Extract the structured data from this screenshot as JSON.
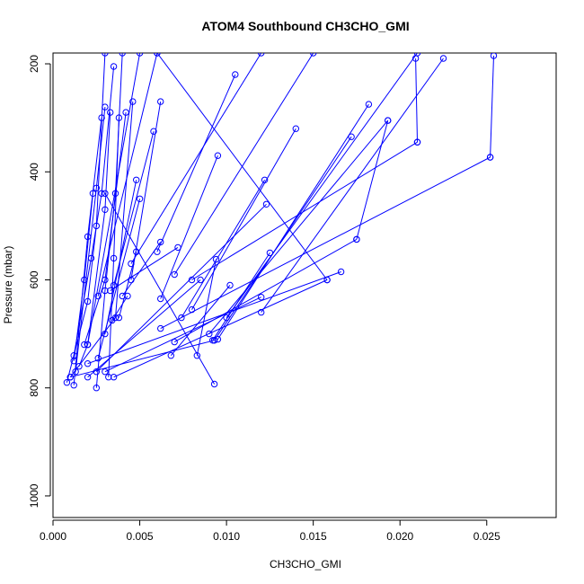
{
  "chart_data": {
    "type": "line",
    "title": "ATOM4 Southbound CH3CHO_GMI",
    "xlabel": "CH3CHO_GMI",
    "ylabel": "Pressure (mbar)",
    "xlim": [
      0.0,
      0.029
    ],
    "ylim": [
      1040,
      180
    ],
    "y_reversed": true,
    "xticks": [
      0.0,
      0.005,
      0.01,
      0.015,
      0.02,
      0.025
    ],
    "xtick_labels": [
      "0.000",
      "0.005",
      "0.010",
      "0.015",
      "0.020",
      "0.025"
    ],
    "yticks": [
      200,
      400,
      600,
      800,
      1000
    ],
    "ytick_labels": [
      "200",
      "400",
      "600",
      "800",
      "1000"
    ],
    "grid": false,
    "line_color": "#0000ff",
    "marker": "open-circle",
    "series": [
      {
        "x": [
          0.0025,
          0.003,
          0.0036,
          0.004
        ],
        "y": [
          800,
          620,
          440,
          180
        ]
      },
      {
        "x": [
          0.0012,
          0.0022,
          0.0028,
          0.0035
        ],
        "y": [
          740,
          560,
          440,
          205
        ]
      },
      {
        "x": [
          0.0008,
          0.002,
          0.0025,
          0.003
        ],
        "y": [
          790,
          640,
          500,
          180
        ]
      },
      {
        "x": [
          0.0012,
          0.0018,
          0.0023
        ],
        "y": [
          750,
          600,
          440
        ]
      },
      {
        "x": [
          0.0015,
          0.002,
          0.003,
          0.0033
        ],
        "y": [
          760,
          720,
          470,
          290
        ]
      },
      {
        "x": [
          0.0012,
          0.002,
          0.0028
        ],
        "y": [
          795,
          520,
          300
        ]
      },
      {
        "x": [
          0.0013,
          0.0025,
          0.003
        ],
        "y": [
          770,
          430,
          280
        ]
      },
      {
        "x": [
          0.0032,
          0.0035,
          0.0038
        ],
        "y": [
          780,
          560,
          300
        ]
      },
      {
        "x": [
          0.0018,
          0.003,
          0.0042
        ],
        "y": [
          720,
          600,
          290
        ]
      },
      {
        "x": [
          0.001,
          0.0036,
          0.0046
        ],
        "y": [
          780,
          670,
          270
        ]
      },
      {
        "x": [
          0.0026,
          0.005
        ],
        "y": [
          745,
          450
        ]
      },
      {
        "x": [
          0.003,
          0.0048
        ],
        "y": [
          700,
          415
        ]
      },
      {
        "x": [
          0.0034,
          0.0043
        ],
        "y": [
          675,
          630
        ]
      },
      {
        "x": [
          0.004,
          0.0062
        ],
        "y": [
          630,
          530
        ]
      },
      {
        "x": [
          0.0035,
          0.0058
        ],
        "y": [
          610,
          325
        ]
      },
      {
        "x": [
          0.0045,
          0.0062
        ],
        "y": [
          600,
          270
        ]
      },
      {
        "x": [
          0.0038,
          0.0048
        ],
        "y": [
          670,
          548
        ]
      },
      {
        "x": [
          0.001,
          0.0093
        ],
        "y": [
          780,
          712
        ]
      },
      {
        "x": [
          0.003,
          0.012
        ],
        "y": [
          770,
          632
        ]
      },
      {
        "x": [
          0.0035,
          0.0158
        ],
        "y": [
          780,
          600
        ]
      },
      {
        "x": [
          0.002,
          0.0166
        ],
        "y": [
          755,
          585
        ]
      },
      {
        "x": [
          0.007,
          0.0175
        ],
        "y": [
          715,
          525
        ]
      },
      {
        "x": [
          0.0068,
          0.0102
        ],
        "y": [
          740,
          610
        ]
      },
      {
        "x": [
          0.0083,
          0.0094
        ],
        "y": [
          740,
          562
        ]
      },
      {
        "x": [
          0.0092,
          0.0125
        ],
        "y": [
          712,
          550
        ]
      },
      {
        "x": [
          0.0074,
          0.0122
        ],
        "y": [
          670,
          415
        ]
      },
      {
        "x": [
          0.0093,
          0.0172
        ],
        "y": [
          712,
          335
        ]
      },
      {
        "x": [
          0.0095,
          0.0182
        ],
        "y": [
          710,
          275
        ]
      },
      {
        "x": [
          0.009,
          0.0193
        ],
        "y": [
          700,
          305
        ]
      },
      {
        "x": [
          0.008,
          0.014
        ],
        "y": [
          655,
          320
        ]
      },
      {
        "x": [
          0.0062,
          0.0095
        ],
        "y": [
          635,
          370
        ]
      },
      {
        "x": [
          0.007,
          0.015
        ],
        "y": [
          590,
          180
        ]
      },
      {
        "x": [
          0.0045,
          0.012
        ],
        "y": [
          570,
          180
        ]
      },
      {
        "x": [
          0.006,
          0.0105
        ],
        "y": [
          548,
          220
        ]
      },
      {
        "x": [
          0.008,
          0.021
        ],
        "y": [
          600,
          345
        ]
      },
      {
        "x": [
          0.01,
          0.021
        ],
        "y": [
          670,
          180
        ]
      },
      {
        "x": [
          0.012,
          0.0225
        ],
        "y": [
          660,
          190
        ]
      },
      {
        "x": [
          0.0062,
          0.0252
        ],
        "y": [
          690,
          373
        ]
      },
      {
        "x": [
          0.0252,
          0.0254
        ],
        "y": [
          373,
          185
        ]
      },
      {
        "x": [
          0.021,
          0.0209
        ],
        "y": [
          345,
          190
        ]
      },
      {
        "x": [
          0.0175,
          0.0193
        ],
        "y": [
          525,
          305
        ]
      },
      {
        "x": [
          0.003,
          0.0093
        ],
        "y": [
          440,
          793
        ]
      },
      {
        "x": [
          0.006,
          0.0158
        ],
        "y": [
          180,
          600
        ]
      },
      {
        "x": [
          0.0026,
          0.006
        ],
        "y": [
          630,
          180
        ]
      },
      {
        "x": [
          0.002,
          0.005
        ],
        "y": [
          720,
          180
        ]
      },
      {
        "x": [
          0.0033,
          0.0072
        ],
        "y": [
          620,
          540
        ]
      },
      {
        "x": [
          0.002,
          0.0085
        ],
        "y": [
          780,
          600
        ]
      },
      {
        "x": [
          0.0025,
          0.0123
        ],
        "y": [
          770,
          460
        ]
      }
    ]
  }
}
